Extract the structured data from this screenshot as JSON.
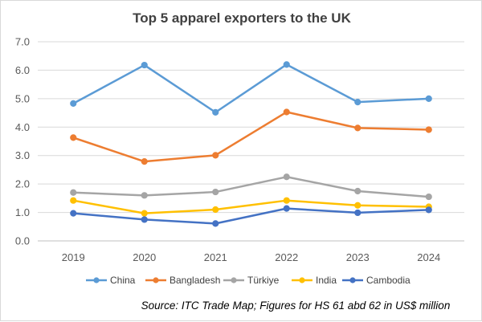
{
  "chart_data": {
    "type": "line",
    "title": "Top 5 apparel exporters to the UK",
    "x": [
      "2019",
      "2020",
      "2021",
      "2022",
      "2023",
      "2024"
    ],
    "ylim": [
      0,
      7
    ],
    "yticks": [
      "0.0",
      "1.0",
      "2.0",
      "3.0",
      "4.0",
      "5.0",
      "6.0",
      "7.0"
    ],
    "grid": true,
    "legend_position": "bottom",
    "series": [
      {
        "name": "China",
        "color": "#5B9BD5",
        "values": [
          4.83,
          6.18,
          4.52,
          6.2,
          4.88,
          5.0
        ]
      },
      {
        "name": "Bangladesh",
        "color": "#ED7D31",
        "values": [
          3.63,
          2.79,
          3.01,
          4.53,
          3.97,
          3.91
        ]
      },
      {
        "name": "Türkiye",
        "color": "#A5A5A5",
        "values": [
          1.7,
          1.6,
          1.72,
          2.25,
          1.75,
          1.55
        ]
      },
      {
        "name": "India",
        "color": "#FFC000",
        "values": [
          1.42,
          0.97,
          1.1,
          1.42,
          1.25,
          1.2
        ]
      },
      {
        "name": "Cambodia",
        "color": "#4472C4",
        "values": [
          0.97,
          0.75,
          0.61,
          1.14,
          0.99,
          1.09
        ]
      }
    ],
    "source": "Source: ITC Trade Map; Figures for HS 61 abd 62 in US$ million"
  }
}
